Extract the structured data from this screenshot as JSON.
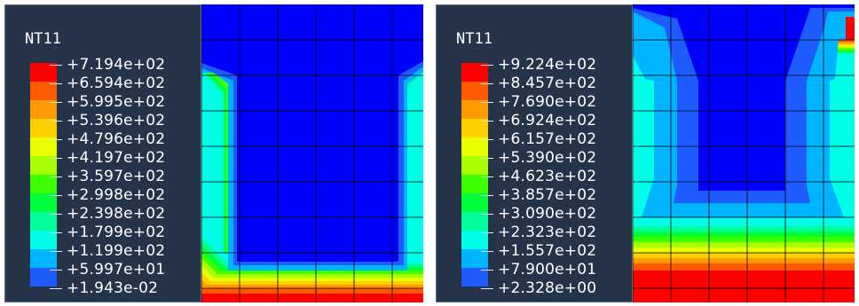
{
  "panels": [
    {
      "legend": {
        "title": "NT11",
        "labels": [
          "+7.194e+02",
          "+6.594e+02",
          "+5.995e+02",
          "+5.396e+02",
          "+4.796e+02",
          "+4.197e+02",
          "+3.597e+02",
          "+2.998e+02",
          "+2.398e+02",
          "+1.799e+02",
          "+1.199e+02",
          "+5.997e+01",
          "+1.943e-02"
        ]
      }
    },
    {
      "legend": {
        "title": "NT11",
        "labels": [
          "+9.224e+02",
          "+8.457e+02",
          "+7.690e+02",
          "+6.924e+02",
          "+6.157e+02",
          "+5.390e+02",
          "+4.623e+02",
          "+3.857e+02",
          "+3.090e+02",
          "+2.323e+02",
          "+1.557e+02",
          "+7.900e+01",
          "+2.328e+00"
        ]
      }
    }
  ],
  "colors": {
    "legend_background": "#26344a",
    "scale": [
      "#ff0000",
      "#ff5a00",
      "#ff9a00",
      "#ffd000",
      "#e8ff00",
      "#a8ff00",
      "#3cff00",
      "#00ff3a",
      "#00ff9c",
      "#00ffe8",
      "#00b4ff",
      "#1e5cff",
      "#0000ff"
    ],
    "mesh_line": "#000000"
  }
}
